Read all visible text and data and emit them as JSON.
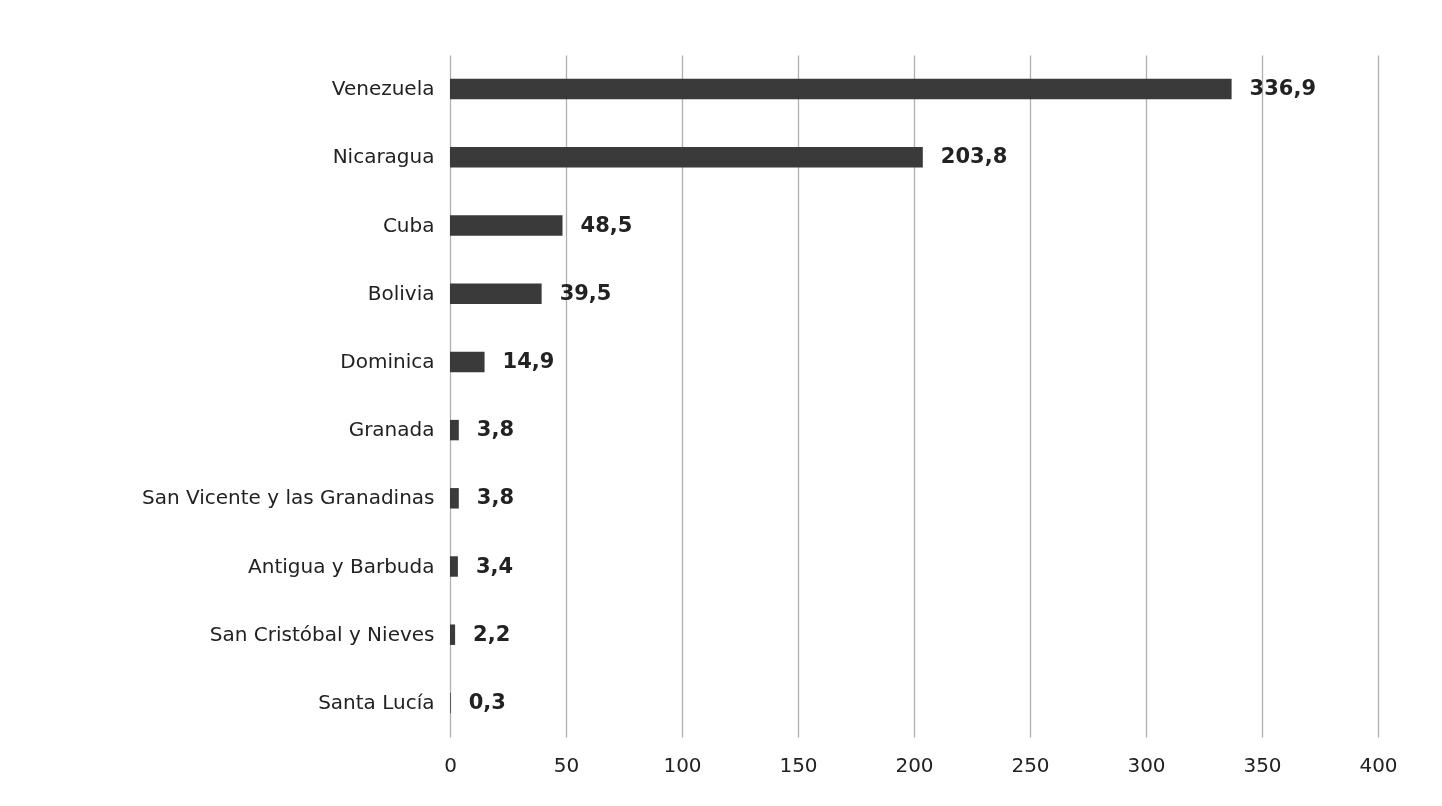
{
  "chart_data": {
    "type": "bar",
    "orientation": "horizontal",
    "categories": [
      "Venezuela",
      "Nicaragua",
      "Cuba",
      "Bolivia",
      "Dominica",
      "Granada",
      "San Vicente y las Granadinas",
      "Antigua y Barbuda",
      "San Cristóbal y Nieves",
      "Santa Lucía"
    ],
    "values": [
      336.9,
      203.8,
      48.5,
      39.5,
      14.9,
      3.8,
      3.8,
      3.4,
      2.2,
      0.3
    ],
    "value_labels": [
      "336,9",
      "203,8",
      "48,5",
      "39,5",
      "14,9",
      "3,8",
      "3,8",
      "3,4",
      "2,2",
      "0,3"
    ],
    "color": "#3a3a3a",
    "xlim": [
      0,
      400
    ],
    "xticks": [
      0,
      50,
      100,
      150,
      200,
      250,
      300,
      350,
      400
    ],
    "grid": "x"
  }
}
